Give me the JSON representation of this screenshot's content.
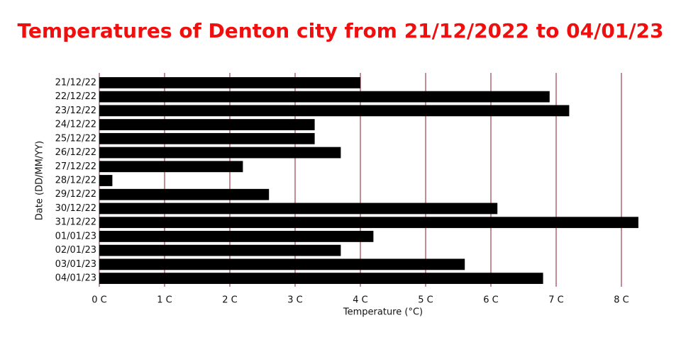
{
  "chart_data": {
    "type": "bar",
    "orientation": "horizontal",
    "title": "Temperatures of Denton city from 21/12/2022 to 04/01/23",
    "x_label": "Temperature (°C)",
    "y_label": "Date (DD/MM/YY)",
    "categories": [
      "21/12/22",
      "22/12/22",
      "23/12/22",
      "24/12/22",
      "25/12/22",
      "26/12/22",
      "27/12/22",
      "28/12/22",
      "29/12/22",
      "30/12/22",
      "31/12/22",
      "01/01/23",
      "02/01/23",
      "03/01/23",
      "04/01/23"
    ],
    "values": [
      4.0,
      6.9,
      7.2,
      3.3,
      3.3,
      3.7,
      2.2,
      0.2,
      2.6,
      6.1,
      8.26,
      4.2,
      3.7,
      5.6,
      6.8
    ],
    "color": "#000000",
    "grid_color": "#8b1a2b",
    "grid": true,
    "xlim": [
      0,
      8.3
    ],
    "xticks": [
      {
        "value": 0,
        "label": "0 C"
      },
      {
        "value": 1,
        "label": "1 C"
      },
      {
        "value": 2,
        "label": "2 C"
      },
      {
        "value": 3,
        "label": "3 C"
      },
      {
        "value": 4,
        "label": "4 C"
      },
      {
        "value": 5,
        "label": "5 C"
      },
      {
        "value": 6,
        "label": "6 C"
      },
      {
        "value": 7,
        "label": "7 C"
      },
      {
        "value": 8,
        "label": "8 C"
      }
    ]
  }
}
